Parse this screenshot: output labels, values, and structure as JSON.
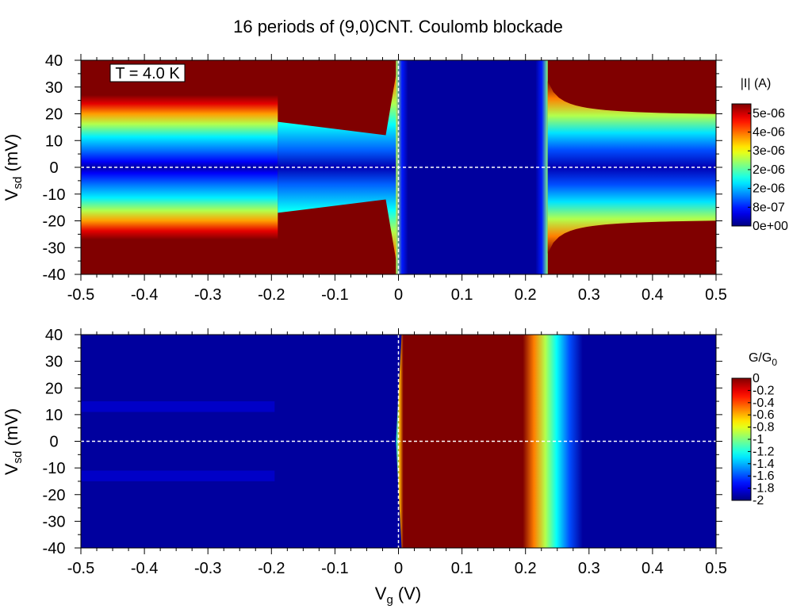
{
  "chart_data": [
    {
      "type": "heatmap",
      "title": "16 periods of (9,0)CNT. Coulomb blockade",
      "xlabel": "",
      "ylabel": {
        "main": "V",
        "sub": "sd",
        "rest": " (mV)"
      },
      "x_range": [
        -0.5,
        0.5
      ],
      "y_range": [
        -40,
        40
      ],
      "x_ticks": [
        -0.5,
        -0.4,
        -0.3,
        -0.2,
        -0.1,
        0,
        0.1,
        0.2,
        0.3,
        0.4,
        0.5
      ],
      "x_tick_labels": [
        "-0.5",
        "-0.4",
        "-0.3",
        "-0.2",
        "-0.1",
        "0",
        "0.1",
        "0.2",
        "0.3",
        "0.4",
        "0.5"
      ],
      "y_ticks": [
        -40,
        -30,
        -20,
        -10,
        0,
        10,
        20,
        30,
        40
      ],
      "y_tick_labels": [
        "-40",
        "-30",
        "-20",
        "-10",
        "0",
        "10",
        "20",
        "30",
        "40"
      ],
      "annotation": "T = 4.0 K",
      "colorbar": {
        "label": "|I| (A)",
        "label_sub": "",
        "range": [
          0,
          5.2e-06
        ],
        "ticks": [
          0,
          8e-07,
          1.6e-06,
          2.4e-06,
          3.2e-06,
          4e-06,
          4.8e-06
        ],
        "tick_labels": [
          "0e+00",
          "8e-07",
          "2e-06",
          "2e-06",
          "3e-06",
          "4e-06",
          "5e-06"
        ]
      },
      "colormap": "jet",
      "dashed_lines": {
        "horizontal_y": 0,
        "vertical_x": 0
      }
    },
    {
      "type": "heatmap",
      "title": "",
      "xlabel": {
        "main": "V",
        "sub": "g",
        "rest": "  (V)"
      },
      "ylabel": {
        "main": "V",
        "sub": "sd",
        "rest": " (mV)"
      },
      "x_range": [
        -0.5,
        0.5
      ],
      "y_range": [
        -40,
        40
      ],
      "x_ticks": [
        -0.5,
        -0.4,
        -0.3,
        -0.2,
        -0.1,
        0,
        0.1,
        0.2,
        0.3,
        0.4,
        0.5
      ],
      "x_tick_labels": [
        "-0.5",
        "-0.4",
        "-0.3",
        "-0.2",
        "-0.1",
        "0",
        "0.1",
        "0.2",
        "0.3",
        "0.4",
        "0.5"
      ],
      "y_ticks": [
        -40,
        -30,
        -20,
        -10,
        0,
        10,
        20,
        30,
        40
      ],
      "y_tick_labels": [
        "-40",
        "-30",
        "-20",
        "-10",
        "0",
        "10",
        "20",
        "30",
        "40"
      ],
      "annotation": "",
      "colorbar": {
        "label": "G/G",
        "label_sub": "0",
        "range": [
          -2,
          0
        ],
        "ticks": [
          0,
          -0.2,
          -0.4,
          -0.6,
          -0.8,
          -1,
          -1.2,
          -1.4,
          -1.6,
          -1.8,
          -2
        ],
        "tick_labels": [
          "0",
          "-0.2",
          "-0.4",
          "-0.6",
          "-0.8",
          "-1",
          "-1.2",
          "-1.4",
          "-1.6",
          "-1.8",
          "-2"
        ]
      },
      "colormap": "jet",
      "dashed_lines": {
        "horizontal_y": 0,
        "vertical_x": 0
      }
    }
  ]
}
